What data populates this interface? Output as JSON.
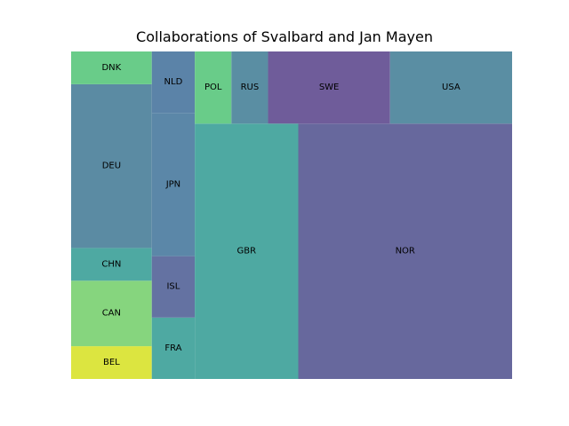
{
  "chart_data": {
    "type": "treemap",
    "title": "Collaborations of Svalbard and Jan Mayen",
    "xlabel": "",
    "ylabel": "",
    "grid": false,
    "items": [
      {
        "label": "BEL",
        "value": 3,
        "color": "#dce540"
      },
      {
        "label": "CAN",
        "value": 6,
        "color": "#86d57e"
      },
      {
        "label": "CHN",
        "value": 3,
        "color": "#4ea9a2"
      },
      {
        "label": "DEU",
        "value": 15,
        "color": "#5b8ba3"
      },
      {
        "label": "DNK",
        "value": 3,
        "color": "#69cc89"
      },
      {
        "label": "FRA",
        "value": 3,
        "color": "#4ea9a2"
      },
      {
        "label": "ISL",
        "value": 3,
        "color": "#6472a2"
      },
      {
        "label": "JPN",
        "value": 7,
        "color": "#5b87a8"
      },
      {
        "label": "NLD",
        "value": 3,
        "color": "#5b83a8"
      },
      {
        "label": "GBR",
        "value": 30,
        "color": "#4ea9a2"
      },
      {
        "label": "NOR",
        "value": 62,
        "color": "#67689d"
      },
      {
        "label": "POL",
        "value": 3,
        "color": "#69cc89"
      },
      {
        "label": "RUS",
        "value": 3,
        "color": "#5a8ea3"
      },
      {
        "label": "SWE",
        "value": 10,
        "color": "#6f5c9a"
      },
      {
        "label": "USA",
        "value": 10,
        "color": "#5a8ea3"
      }
    ]
  }
}
